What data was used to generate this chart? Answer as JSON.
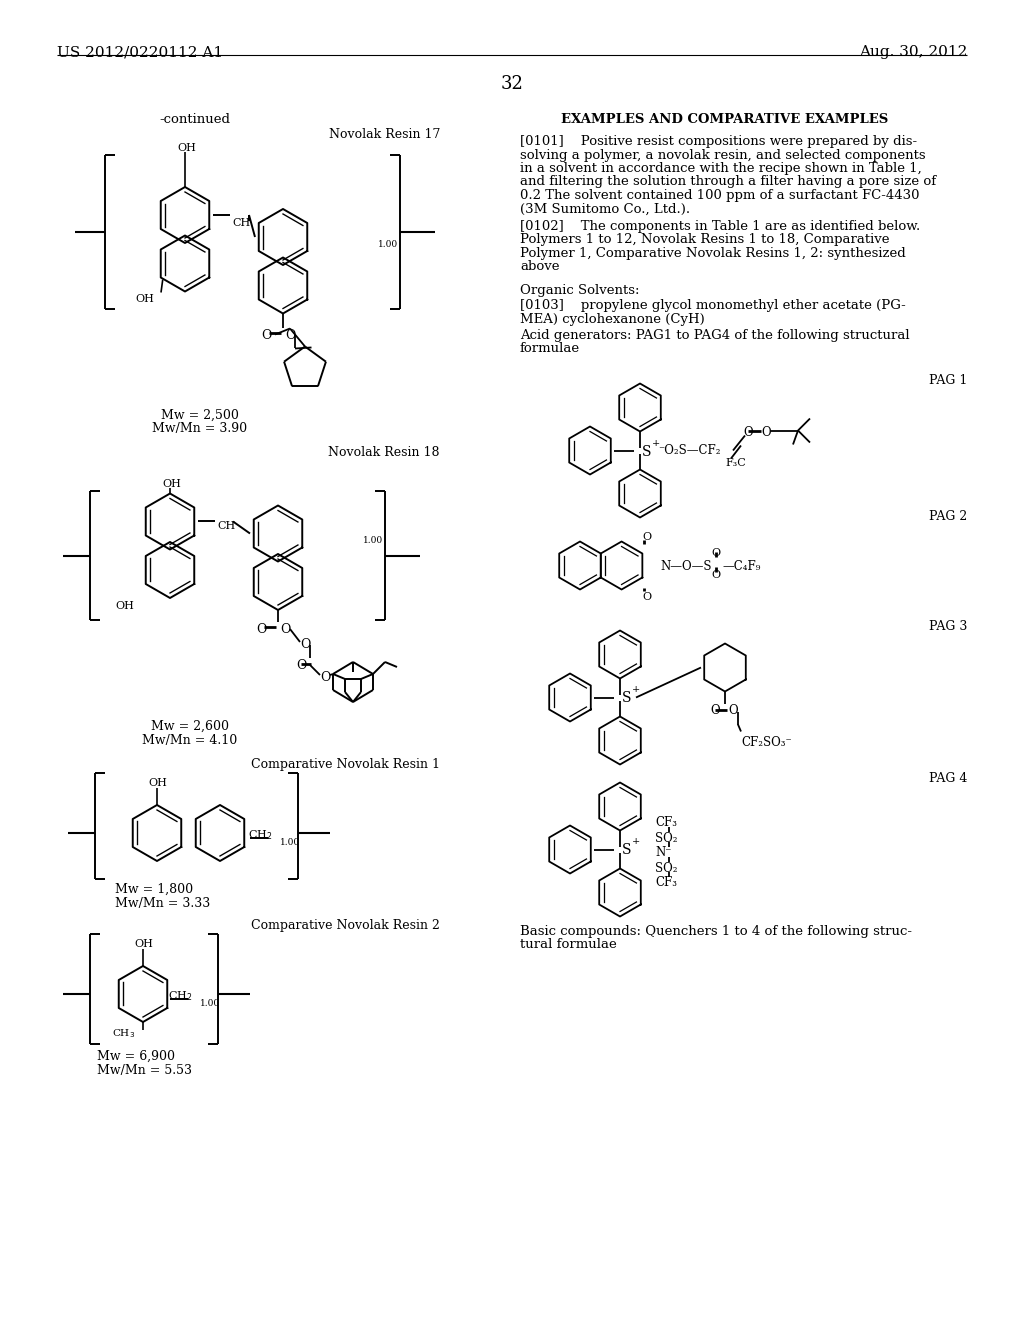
{
  "bg_color": "#ffffff",
  "header_left": "US 2012/0220112 A1",
  "header_right": "Aug. 30, 2012",
  "page_number": "32",
  "continued_label": "-continued",
  "section_title": "EXAMPLES AND COMPARATIVE EXAMPLES",
  "novolak17_label": "Novolak Resin 17",
  "novolak17_mw": "Mw = 2,500",
  "novolak17_mn": "Mw/Mn = 3.90",
  "novolak18_label": "Novolak Resin 18",
  "novolak18_mw": "Mw = 2,600",
  "novolak18_mn": "Mw/Mn = 4.10",
  "comp_novolak1_label": "Comparative Novolak Resin 1",
  "comp_novolak1_mw": "Mw = 1,800",
  "comp_novolak1_mn": "Mw/Mn = 3.33",
  "comp_novolak2_label": "Comparative Novolak Resin 2",
  "comp_novolak2_mw": "Mw = 6,900",
  "comp_novolak2_mn": "Mw/Mn = 5.53",
  "pag1_label": "PAG 1",
  "pag2_label": "PAG 2",
  "pag3_label": "PAG 3",
  "pag4_label": "PAG 4",
  "basic_compounds": "Basic compounds: Quenchers 1 to 4 of the following struc-",
  "basic_compounds2": "tural formulae",
  "font_size_header": 11,
  "font_size_body": 9.5,
  "font_size_label": 9,
  "font_size_page": 13,
  "lines_0101": [
    "[0101]    Positive resist compositions were prepared by dis-",
    "solving a polymer, a novolak resin, and selected components",
    "in a solvent in accordance with the recipe shown in Table 1,",
    "and filtering the solution through a filter having a pore size of",
    "0.2 The solvent contained 100 ppm of a surfactant FC-4430",
    "(3M Sumitomo Co., Ltd.)."
  ],
  "lines_0102": [
    "[0102]    The components in Table 1 are as identified below.",
    "Polymers 1 to 12, Novolak Resins 1 to 18, Comparative",
    "Polymer 1, Comparative Novolak Resins 1, 2: synthesized",
    "above"
  ],
  "organic_solvents": "Organic Solvents:",
  "lines_0103": [
    "[0103]    propylene glycol monomethyl ether acetate (PG-",
    "MEA) cyclohexanone (CyH)"
  ],
  "lines_acid": [
    "Acid generators: PAG1 to PAG4 of the following structural",
    "formulae"
  ]
}
